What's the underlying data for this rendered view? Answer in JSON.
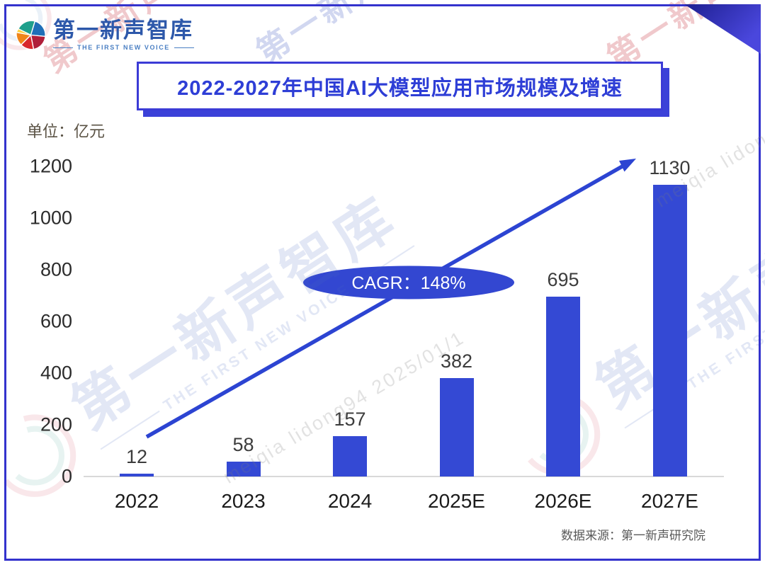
{
  "page": {
    "background": "#ffffff",
    "border_color": "#3433cd"
  },
  "logo": {
    "icon": "globe-swirl-icon",
    "name": "第一新声智库",
    "subtitle": "THE FIRST NEW VOICE"
  },
  "title": {
    "text": "2022-2027年中国AI大模型应用市场规模及增速",
    "color": "#2e3ed6"
  },
  "unit_label": "单位：亿元",
  "source_label": "数据来源：第一新声研究院",
  "watermark": {
    "brand": "第一新声智库",
    "brand_subtitle": "THE FIRST NEW VOICE",
    "user_text": "meiqia lidong94 2025/01/1"
  },
  "chart_data": {
    "type": "bar",
    "title": "2022-2027年中国AI大模型应用市场规模及增速",
    "unit": "亿元",
    "categories": [
      "2022",
      "2023",
      "2024",
      "2025E",
      "2026E",
      "2027E"
    ],
    "values": [
      12,
      58,
      157,
      382,
      695,
      1130
    ],
    "y_ticks": [
      0,
      200,
      400,
      600,
      800,
      1000,
      1200
    ],
    "ylim": [
      0,
      1200
    ],
    "grid": false,
    "bar_color": "#3449d4",
    "accent_color": "#2c44d2",
    "annotation": {
      "label": "CAGR：148%",
      "type": "growth-arrow"
    }
  }
}
